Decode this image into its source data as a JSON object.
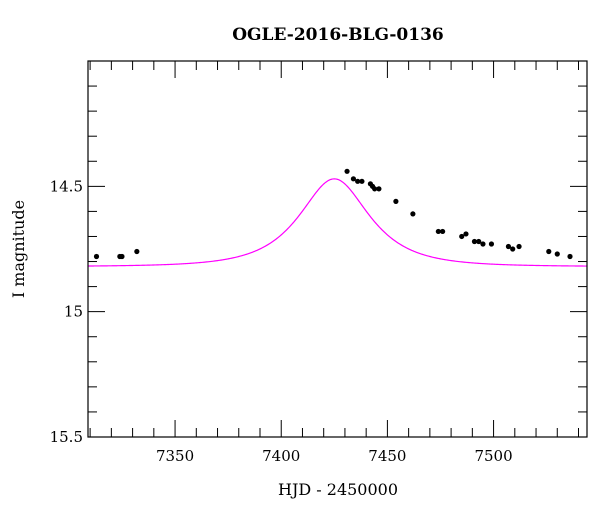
{
  "chart_data": {
    "type": "scatter",
    "title": "OGLE-2016-BLG-0136",
    "xlabel": "HJD - 2450000",
    "ylabel": "I magnitude",
    "xlim": [
      7309,
      7544
    ],
    "ylim": [
      15.5,
      14.0
    ],
    "y_inverted": true,
    "grid": false,
    "x_major_ticks": [
      7350,
      7400,
      7450,
      7500
    ],
    "x_tick_labels": [
      "7350",
      "7400",
      "7450",
      "7500"
    ],
    "y_major_ticks": [
      14.5,
      15.0,
      15.5
    ],
    "y_tick_labels": [
      "14.5",
      "15",
      "15.5"
    ],
    "colors": {
      "model": "#ff00ff",
      "points": "#000000",
      "frame": "#000000"
    },
    "series": [
      {
        "type": "scatter",
        "x": [
          7313,
          7324,
          7325,
          7332,
          7431,
          7434,
          7436,
          7438,
          7442,
          7443,
          7444,
          7446,
          7454,
          7462,
          7474,
          7476,
          7485,
          7487,
          7491,
          7493,
          7495,
          7499,
          7507,
          7509,
          7512,
          7526,
          7530,
          7536
        ],
        "y": [
          14.78,
          14.78,
          14.78,
          14.76,
          14.44,
          14.47,
          14.48,
          14.48,
          14.49,
          14.5,
          14.51,
          14.51,
          14.56,
          14.61,
          14.68,
          14.68,
          14.7,
          14.69,
          14.72,
          14.72,
          14.73,
          14.73,
          14.74,
          14.75,
          14.74,
          14.76,
          14.77,
          14.78
        ]
      },
      {
        "type": "line",
        "model": {
          "t0": 7425,
          "u0": 0.7,
          "tE": 25,
          "fs": 0.56,
          "I_base": 14.82
        }
      }
    ]
  }
}
